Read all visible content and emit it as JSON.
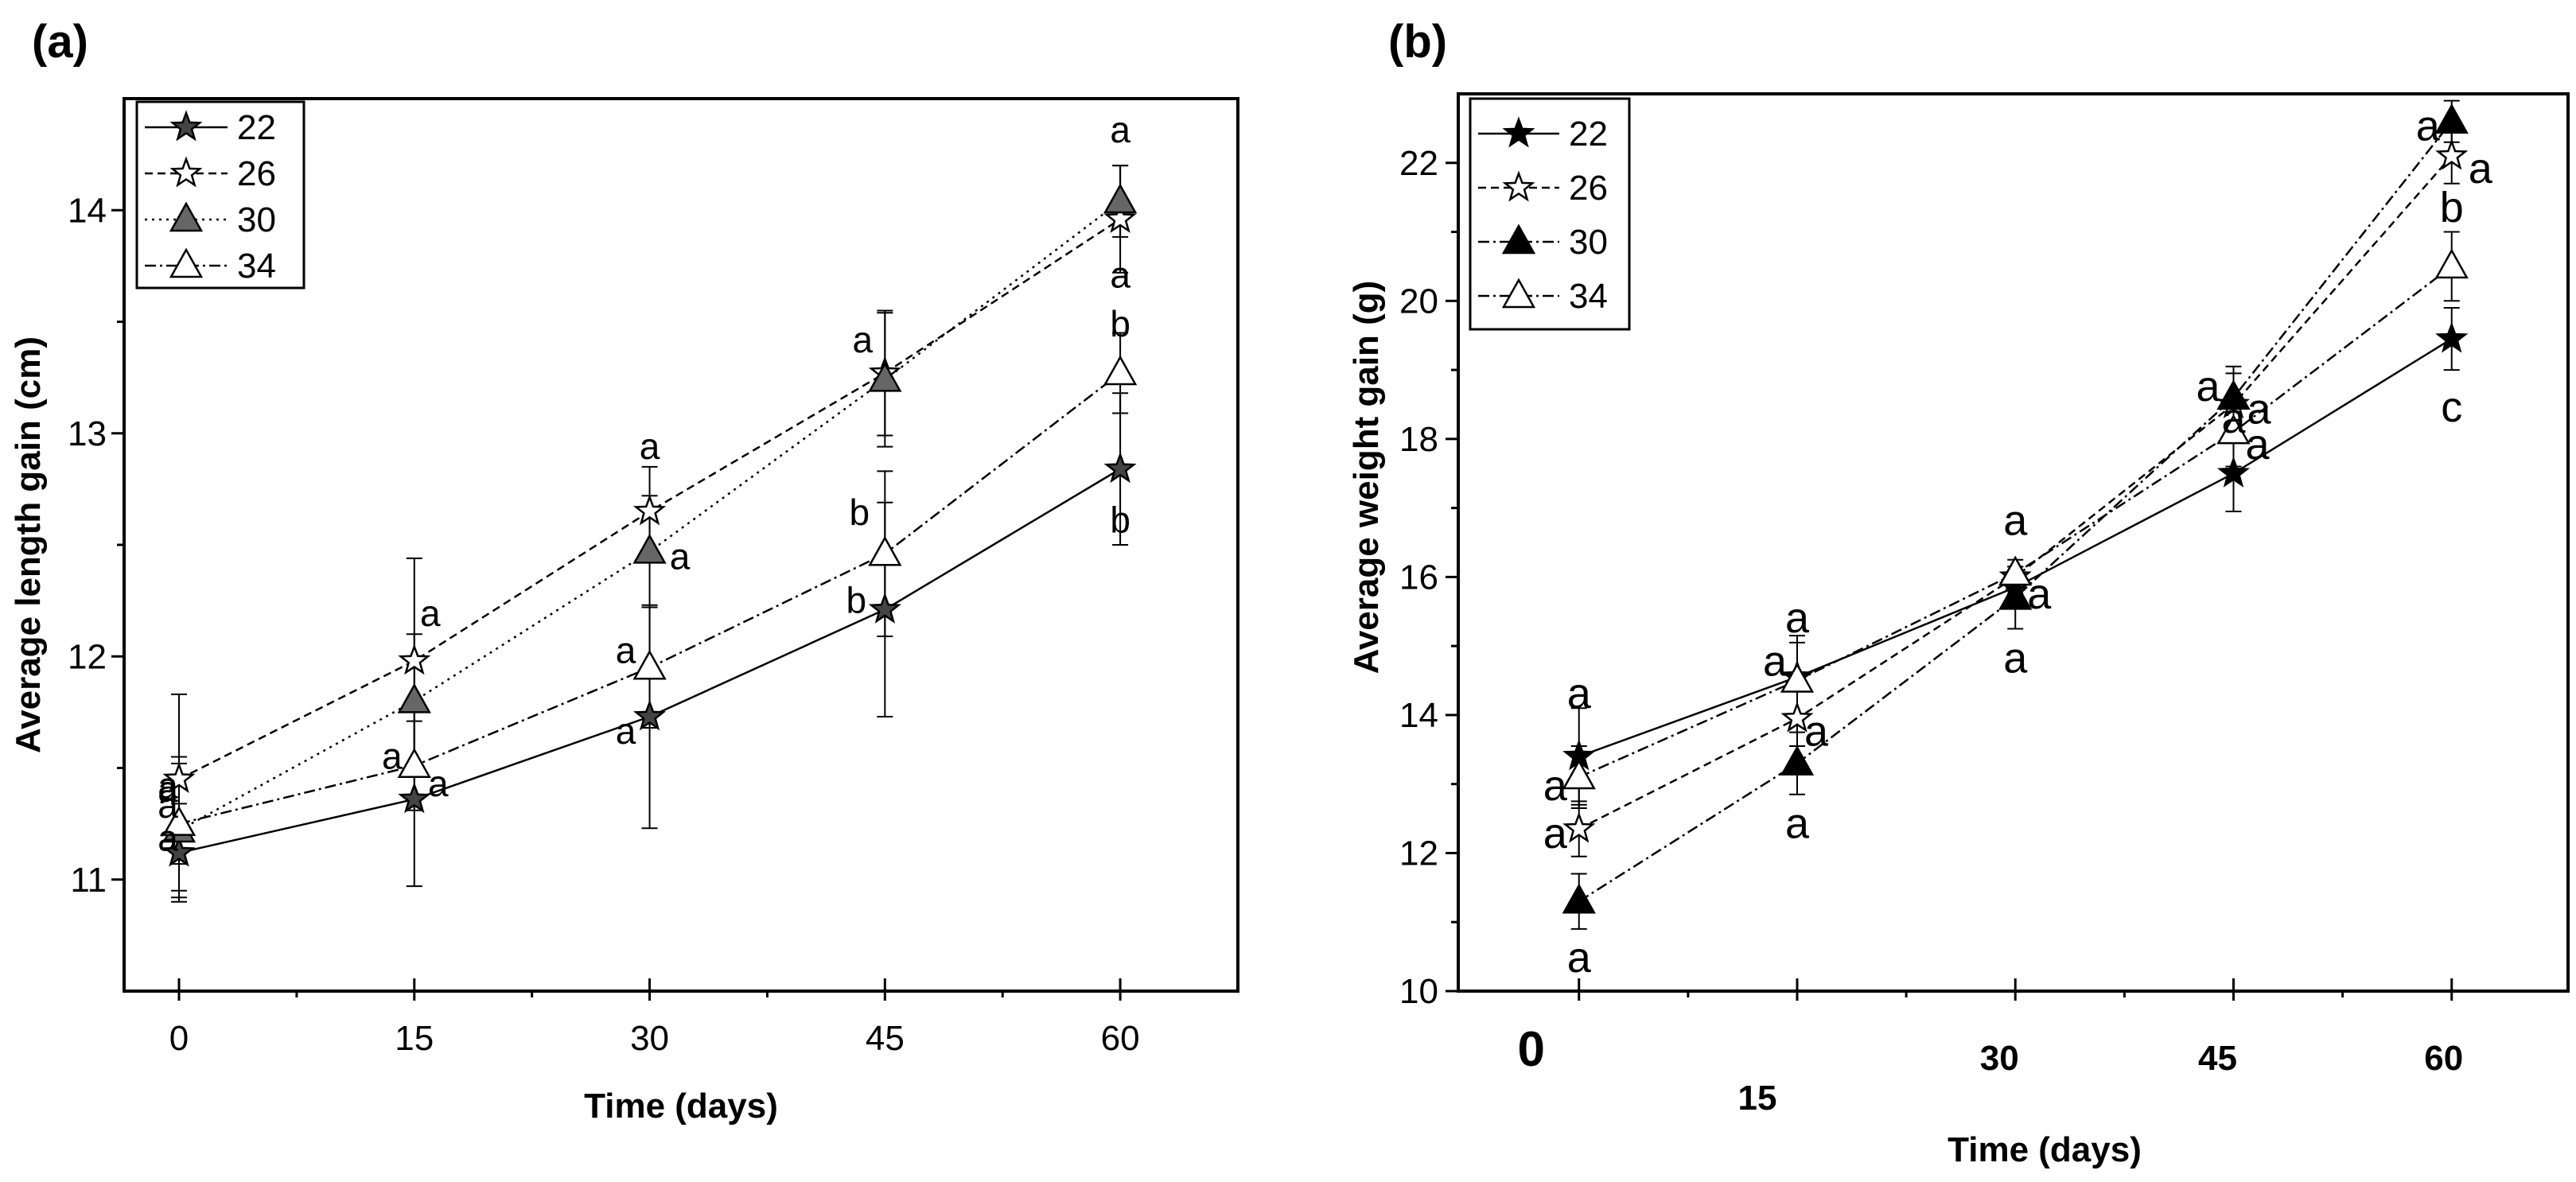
{
  "chart_data": [
    {
      "type": "line",
      "panel": "(a)",
      "title": "",
      "xlabel": "Time (days)",
      "ylabel": "Average length gain (cm)",
      "x": [
        0,
        15,
        30,
        45,
        60
      ],
      "xticks": [
        "0",
        "15",
        "30",
        "45",
        "60"
      ],
      "xlim": [
        -3.5,
        67.5
      ],
      "ylim": [
        10.5,
        14.5
      ],
      "yticks": [
        "11",
        "12",
        "13",
        "14"
      ],
      "grid": false,
      "legend_position": "top-left",
      "series": [
        {
          "name": "22",
          "marker": "star-filled",
          "line": "solid",
          "color": "#444444",
          "values": [
            11.12,
            11.36,
            11.73,
            12.21,
            12.84
          ],
          "errors": [
            0.22,
            0.39,
            0.5,
            0.48,
            0.34
          ],
          "labels": [
            "a",
            "a",
            "a",
            "b",
            "b"
          ]
        },
        {
          "name": "26",
          "marker": "star-open",
          "line": "dashed",
          "color": "#000000",
          "values": [
            11.45,
            11.98,
            12.65,
            13.27,
            13.96
          ],
          "errors": [
            0.38,
            0.46,
            0.2,
            0.28,
            0.24
          ],
          "labels": [
            "a",
            "a",
            "a",
            "a",
            "a"
          ]
        },
        {
          "name": "30",
          "marker": "triangle-filled",
          "line": "dotted",
          "color": "#666666",
          "values": [
            11.22,
            11.8,
            12.47,
            13.24,
            14.04
          ],
          "errors": [
            0.3,
            0.3,
            0.25,
            0.3,
            0.16
          ],
          "labels": [
            "a",
            "a",
            "a",
            "a",
            "a"
          ]
        },
        {
          "name": "34",
          "marker": "triangle-open",
          "line": "dashdot",
          "color": "#000000",
          "values": [
            11.25,
            11.51,
            11.95,
            12.46,
            13.27
          ],
          "errors": [
            0.3,
            0.2,
            0.27,
            0.37,
            0.18
          ],
          "labels": [
            "a",
            "a",
            "a",
            "b",
            "b"
          ]
        }
      ]
    },
    {
      "type": "line",
      "panel": "(b)",
      "title": "",
      "xlabel": "Time (days)",
      "ylabel": "Average weight gain (g)",
      "x": [
        0,
        15,
        30,
        45,
        60
      ],
      "xticks": [
        "0",
        "15",
        "30",
        "45",
        "60"
      ],
      "xlim": [
        -8.3,
        68
      ],
      "ylim": [
        10,
        23
      ],
      "yticks": [
        "10",
        "12",
        "14",
        "16",
        "18",
        "20",
        "22"
      ],
      "grid": false,
      "legend_position": "top-left",
      "series": [
        {
          "name": "22",
          "marker": "star-filled",
          "line": "solid",
          "color": "#000000",
          "values": [
            13.4,
            14.55,
            15.85,
            17.5,
            19.45
          ],
          "errors": [
            0.7,
            0.6,
            0.15,
            0.55,
            0.45
          ],
          "labels": [
            "a",
            "a",
            "a",
            "a",
            "c"
          ]
        },
        {
          "name": "26",
          "marker": "star-open",
          "line": "dashed",
          "color": "#000000",
          "values": [
            12.35,
            13.95,
            16.0,
            18.5,
            22.1
          ],
          "errors": [
            0.4,
            0.4,
            0.15,
            0.45,
            0.4
          ],
          "labels": [
            "a",
            "a",
            "a",
            "a",
            "a"
          ]
        },
        {
          "name": "30",
          "marker": "triangle-filled",
          "line": "dashdot",
          "color": "#000000",
          "values": [
            11.3,
            13.3,
            15.7,
            18.6,
            22.6
          ],
          "errors": [
            0.4,
            0.45,
            0.45,
            0.45,
            0.3
          ],
          "labels": [
            "a",
            "a",
            "a",
            "a",
            "a"
          ]
        },
        {
          "name": "34",
          "marker": "triangle-open",
          "line": "dashdot",
          "color": "#000000",
          "values": [
            13.1,
            14.5,
            16.05,
            18.1,
            20.5
          ],
          "errors": [
            0.45,
            0.55,
            0.2,
            0.5,
            0.5
          ],
          "labels": [
            "a",
            "a",
            "a",
            "a",
            "b"
          ]
        }
      ]
    }
  ]
}
